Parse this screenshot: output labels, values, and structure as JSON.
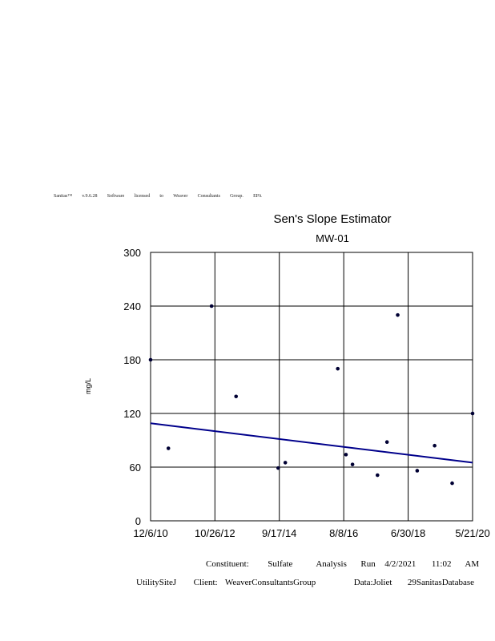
{
  "header": {
    "words": [
      "Sanitas™",
      "v.9.6.28",
      "Software",
      "licensed",
      "to",
      "Weaver",
      "Consultants",
      "Group.",
      "EPA"
    ]
  },
  "footer": {
    "line1": {
      "constituent_label": "Constituent:",
      "constituent_value": "Sulfate",
      "analysis": "Analysis",
      "run": "Run",
      "date": "4/2/2021",
      "time": "11:02",
      "ampm": "AM"
    },
    "line2": {
      "site": "UtilitySiteJ",
      "client_label": "Client:",
      "client_value": "WeaverConsultantsGroup",
      "data": "Data:Joliet",
      "database": "29SanitasDatabase"
    }
  },
  "chart_data": {
    "type": "scatter",
    "title": "Sen's Slope Estimator",
    "subtitle": "MW-01",
    "xlabel": "",
    "ylabel": "mg/L",
    "ylim": [
      0,
      300
    ],
    "yticks": [
      "0",
      "60",
      "120",
      "180",
      "240",
      "300"
    ],
    "xlim": [
      "2010-12-06",
      "2020-05-21"
    ],
    "xticks": [
      {
        "date": "2010-12-06",
        "label": "12/6/10"
      },
      {
        "date": "2012-10-26",
        "label": "10/26/12"
      },
      {
        "date": "2014-09-17",
        "label": "9/17/14"
      },
      {
        "date": "2016-08-08",
        "label": "8/8/16"
      },
      {
        "date": "2018-06-30",
        "label": "6/30/18"
      },
      {
        "date": "2020-05-21",
        "label": "5/21/20"
      }
    ],
    "grid": true,
    "colors": {
      "points": "#000033",
      "trend": "#00008b",
      "grid": "#000000"
    },
    "points": [
      {
        "x": "2010-12-06",
        "y": 180
      },
      {
        "x": "2011-06-15",
        "y": 81
      },
      {
        "x": "2012-09-20",
        "y": 240
      },
      {
        "x": "2013-06-10",
        "y": 139
      },
      {
        "x": "2014-09-05",
        "y": 59
      },
      {
        "x": "2014-11-20",
        "y": 65
      },
      {
        "x": "2016-06-05",
        "y": 170
      },
      {
        "x": "2016-09-01",
        "y": 74
      },
      {
        "x": "2016-11-10",
        "y": 63
      },
      {
        "x": "2017-08-05",
        "y": 51
      },
      {
        "x": "2017-11-15",
        "y": 88
      },
      {
        "x": "2018-03-10",
        "y": 230
      },
      {
        "x": "2018-10-05",
        "y": 56
      },
      {
        "x": "2019-04-10",
        "y": 84
      },
      {
        "x": "2019-10-15",
        "y": 42
      },
      {
        "x": "2020-05-21",
        "y": 120
      }
    ],
    "trend_line": {
      "x": [
        "2010-12-06",
        "2020-05-21"
      ],
      "y": [
        109,
        65
      ]
    }
  }
}
